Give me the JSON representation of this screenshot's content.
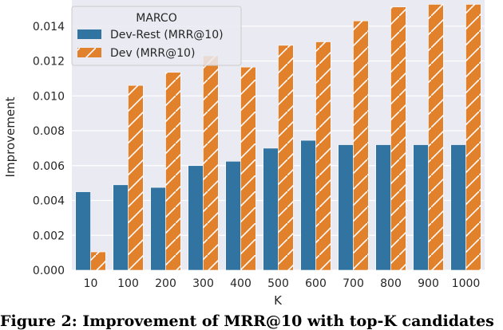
{
  "chart_data": {
    "type": "bar",
    "title": "",
    "xlabel": "K",
    "ylabel": "Improvement",
    "ylim": [
      0,
      0.0155
    ],
    "yticks": [
      "0.000",
      "0.002",
      "0.004",
      "0.006",
      "0.008",
      "0.010",
      "0.012",
      "0.014"
    ],
    "grid": true,
    "legend": {
      "title": "MARCO",
      "placement": "top-left"
    },
    "categories": [
      "10",
      "100",
      "200",
      "300",
      "400",
      "500",
      "600",
      "700",
      "800",
      "900",
      "1000"
    ],
    "series": [
      {
        "name": "Dev-Rest (MRR@10)",
        "color": "#3274a1",
        "hatch": false,
        "values": [
          0.0045,
          0.0049,
          0.00475,
          0.006,
          0.00625,
          0.007,
          0.00745,
          0.0072,
          0.0072,
          0.0072,
          0.0072
        ]
      },
      {
        "name": "Dev (MRR@10)",
        "color": "#e1812c",
        "hatch": true,
        "values": [
          0.00105,
          0.0106,
          0.01135,
          0.0123,
          0.01165,
          0.0129,
          0.0131,
          0.0143,
          0.0151,
          0.01525,
          0.01525
        ]
      }
    ]
  },
  "caption": "Figure 2: Improvement of MRR@10 with top-K candidates"
}
